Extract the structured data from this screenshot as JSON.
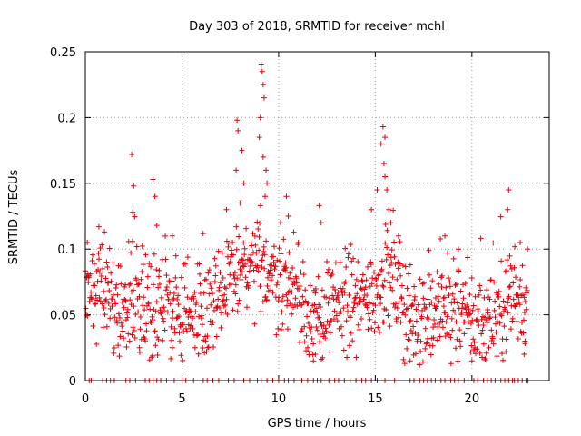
{
  "chart_data": {
    "type": "scatter",
    "title": "Day 303 of 2018, SRMTID for receiver mchl",
    "xlabel": "GPS time / hours",
    "ylabel": "SRMTID / TECUs",
    "xlim": [
      0,
      24
    ],
    "ylim": [
      0,
      0.25
    ],
    "xticks": [
      0,
      5,
      10,
      15,
      20
    ],
    "yticks": [
      0,
      0.05,
      0.1,
      0.15,
      0.2,
      0.25
    ],
    "xtick_labels": [
      "0",
      "5",
      "10",
      "15",
      "20"
    ],
    "ytick_labels": [
      "0",
      "0.05",
      "0.1",
      "0.15",
      "0.2",
      "0.25"
    ],
    "grid": true,
    "marker": "plus",
    "series": [
      {
        "name": "SRMTID",
        "color": "#e8000b",
        "trend_x": [
          0,
          0.5,
          1,
          1.5,
          2,
          2.5,
          3,
          3.5,
          4,
          4.5,
          5,
          5.5,
          6,
          6.5,
          7,
          7.5,
          8,
          8.5,
          9,
          9.5,
          10,
          10.5,
          11,
          11.5,
          12,
          12.5,
          13,
          13.5,
          14,
          14.5,
          15,
          15.5,
          16,
          16.5,
          17,
          17.5,
          18,
          18.5,
          19,
          19.5,
          20,
          20.5,
          21,
          21.5,
          22,
          22.5,
          22.9
        ],
        "trend_y": [
          0.07,
          0.072,
          0.066,
          0.06,
          0.054,
          0.062,
          0.058,
          0.056,
          0.054,
          0.057,
          0.052,
          0.05,
          0.055,
          0.062,
          0.068,
          0.075,
          0.085,
          0.082,
          0.088,
          0.085,
          0.078,
          0.072,
          0.068,
          0.052,
          0.04,
          0.05,
          0.055,
          0.06,
          0.058,
          0.062,
          0.068,
          0.078,
          0.072,
          0.052,
          0.045,
          0.048,
          0.05,
          0.055,
          0.052,
          0.05,
          0.045,
          0.042,
          0.05,
          0.055,
          0.06,
          0.065,
          0.062
        ],
        "spread_y": 0.018,
        "sample_step_hours": 0.022,
        "peaks": [
          {
            "x": 0.1,
            "y": 0.105
          },
          {
            "x": 0.7,
            "y": 0.117
          },
          {
            "x": 2.4,
            "y": 0.172
          },
          {
            "x": 2.5,
            "y": 0.148
          },
          {
            "x": 2.45,
            "y": 0.128
          },
          {
            "x": 3.5,
            "y": 0.153
          },
          {
            "x": 3.6,
            "y": 0.14
          },
          {
            "x": 3.7,
            "y": 0.118
          },
          {
            "x": 4.5,
            "y": 0.11
          },
          {
            "x": 7.3,
            "y": 0.13
          },
          {
            "x": 7.8,
            "y": 0.16
          },
          {
            "x": 7.85,
            "y": 0.198
          },
          {
            "x": 7.9,
            "y": 0.19
          },
          {
            "x": 8.1,
            "y": 0.175
          },
          {
            "x": 8.2,
            "y": 0.15
          },
          {
            "x": 8.0,
            "y": 0.135
          },
          {
            "x": 9.0,
            "y": 0.185
          },
          {
            "x": 9.05,
            "y": 0.2
          },
          {
            "x": 9.1,
            "y": 0.24
          },
          {
            "x": 9.15,
            "y": 0.235
          },
          {
            "x": 9.2,
            "y": 0.225
          },
          {
            "x": 9.25,
            "y": 0.215
          },
          {
            "x": 9.2,
            "y": 0.17
          },
          {
            "x": 9.35,
            "y": 0.16
          },
          {
            "x": 9.4,
            "y": 0.15
          },
          {
            "x": 9.3,
            "y": 0.14
          },
          {
            "x": 10.4,
            "y": 0.14
          },
          {
            "x": 10.5,
            "y": 0.125
          },
          {
            "x": 12.1,
            "y": 0.133
          },
          {
            "x": 12.2,
            "y": 0.12
          },
          {
            "x": 14.8,
            "y": 0.13
          },
          {
            "x": 15.1,
            "y": 0.145
          },
          {
            "x": 15.3,
            "y": 0.18
          },
          {
            "x": 15.4,
            "y": 0.193
          },
          {
            "x": 15.5,
            "y": 0.185
          },
          {
            "x": 15.45,
            "y": 0.165
          },
          {
            "x": 15.5,
            "y": 0.155
          },
          {
            "x": 15.6,
            "y": 0.145
          },
          {
            "x": 15.7,
            "y": 0.13
          },
          {
            "x": 15.8,
            "y": 0.12
          },
          {
            "x": 16.2,
            "y": 0.11
          },
          {
            "x": 18.6,
            "y": 0.11
          },
          {
            "x": 19.3,
            "y": 0.1
          },
          {
            "x": 21.9,
            "y": 0.145
          },
          {
            "x": 21.85,
            "y": 0.13
          },
          {
            "x": 22.5,
            "y": 0.105
          },
          {
            "x": 11.8,
            "y": 0.015
          },
          {
            "x": 11.9,
            "y": 0.02
          },
          {
            "x": 20.0,
            "y": 0.015
          },
          {
            "x": 20.1,
            "y": 0.022
          },
          {
            "x": 16.8,
            "y": 0.015
          },
          {
            "x": 22.7,
            "y": 0.02
          },
          {
            "x": 22.75,
            "y": 0.03
          },
          {
            "x": 4.5,
            "y": 0.025
          },
          {
            "x": 2.8,
            "y": 0.025
          }
        ],
        "zero_line_x": [
          0.2,
          0.3,
          0.9,
          1.1,
          1.3,
          1.5,
          2.1,
          2.3,
          2.6,
          3.1,
          3.3,
          3.5,
          3.7,
          3.9,
          4.2,
          4.6,
          5.0,
          5.2,
          5.6,
          6.1,
          6.3,
          6.6,
          6.9,
          7.4,
          7.7,
          8.2,
          8.5,
          8.9,
          9.1,
          9.4,
          9.7,
          10.0,
          10.3,
          10.5,
          10.8,
          11.2,
          11.5,
          11.8,
          12.0,
          12.2,
          12.6,
          12.9,
          13.1,
          13.4,
          13.7,
          14.0,
          14.3,
          14.5,
          14.8,
          15.1,
          15.5,
          16.0,
          16.8,
          17.0,
          17.3,
          17.5,
          17.7,
          17.9,
          18.1,
          18.4,
          18.6,
          18.9,
          19.1,
          19.3,
          19.6,
          19.8,
          20.1,
          20.3,
          20.6,
          20.8,
          21.0,
          21.2,
          21.5,
          21.7,
          21.9,
          22.1,
          22.2,
          22.4,
          22.6,
          22.8,
          22.9
        ]
      }
    ]
  }
}
